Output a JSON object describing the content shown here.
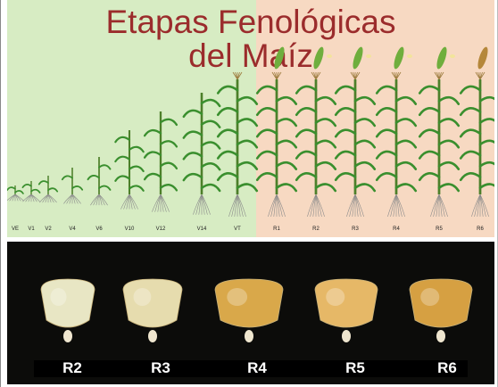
{
  "title": {
    "line1": "Etapas Fenológicas",
    "line2": "del Maíz"
  },
  "stages": [
    {
      "label": "VE",
      "phase": "vegetative",
      "growth": 0.06
    },
    {
      "label": "V1",
      "phase": "vegetative",
      "growth": 0.1
    },
    {
      "label": "V2",
      "phase": "vegetative",
      "growth": 0.14
    },
    {
      "label": "V4",
      "phase": "vegetative",
      "growth": 0.2
    },
    {
      "label": "V6",
      "phase": "vegetative",
      "growth": 0.28
    },
    {
      "label": "V10",
      "phase": "vegetative",
      "growth": 0.48
    },
    {
      "label": "V12",
      "phase": "vegetative",
      "growth": 0.62
    },
    {
      "label": "V14",
      "phase": "vegetative",
      "growth": 0.76
    },
    {
      "label": "VT",
      "phase": "vegetative",
      "growth": 0.86
    },
    {
      "label": "R1",
      "phase": "reproductive",
      "growth": 0.86
    },
    {
      "label": "R2",
      "phase": "reproductive",
      "growth": 0.86
    },
    {
      "label": "R3",
      "phase": "reproductive",
      "growth": 0.86
    },
    {
      "label": "R4",
      "phase": "reproductive",
      "growth": 0.86
    },
    {
      "label": "R5",
      "phase": "reproductive",
      "growth": 0.86
    },
    {
      "label": "R6",
      "phase": "reproductive",
      "growth": 0.86
    }
  ],
  "kernels": [
    {
      "label": "R2",
      "color": "#e8e6c4"
    },
    {
      "label": "R3",
      "color": "#e6dcae"
    },
    {
      "label": "R4",
      "color": "#d9a84a"
    },
    {
      "label": "R5",
      "color": "#e6b867"
    },
    {
      "label": "R6",
      "color": "#d6a042"
    }
  ],
  "colors": {
    "title": "#9b2c2c",
    "vegetative_bg": "#d7ecc3",
    "reproductive_bg": "#f7d9c2",
    "leaf": "#3a8f2e",
    "bottom_bg": "#0c0c0a"
  }
}
